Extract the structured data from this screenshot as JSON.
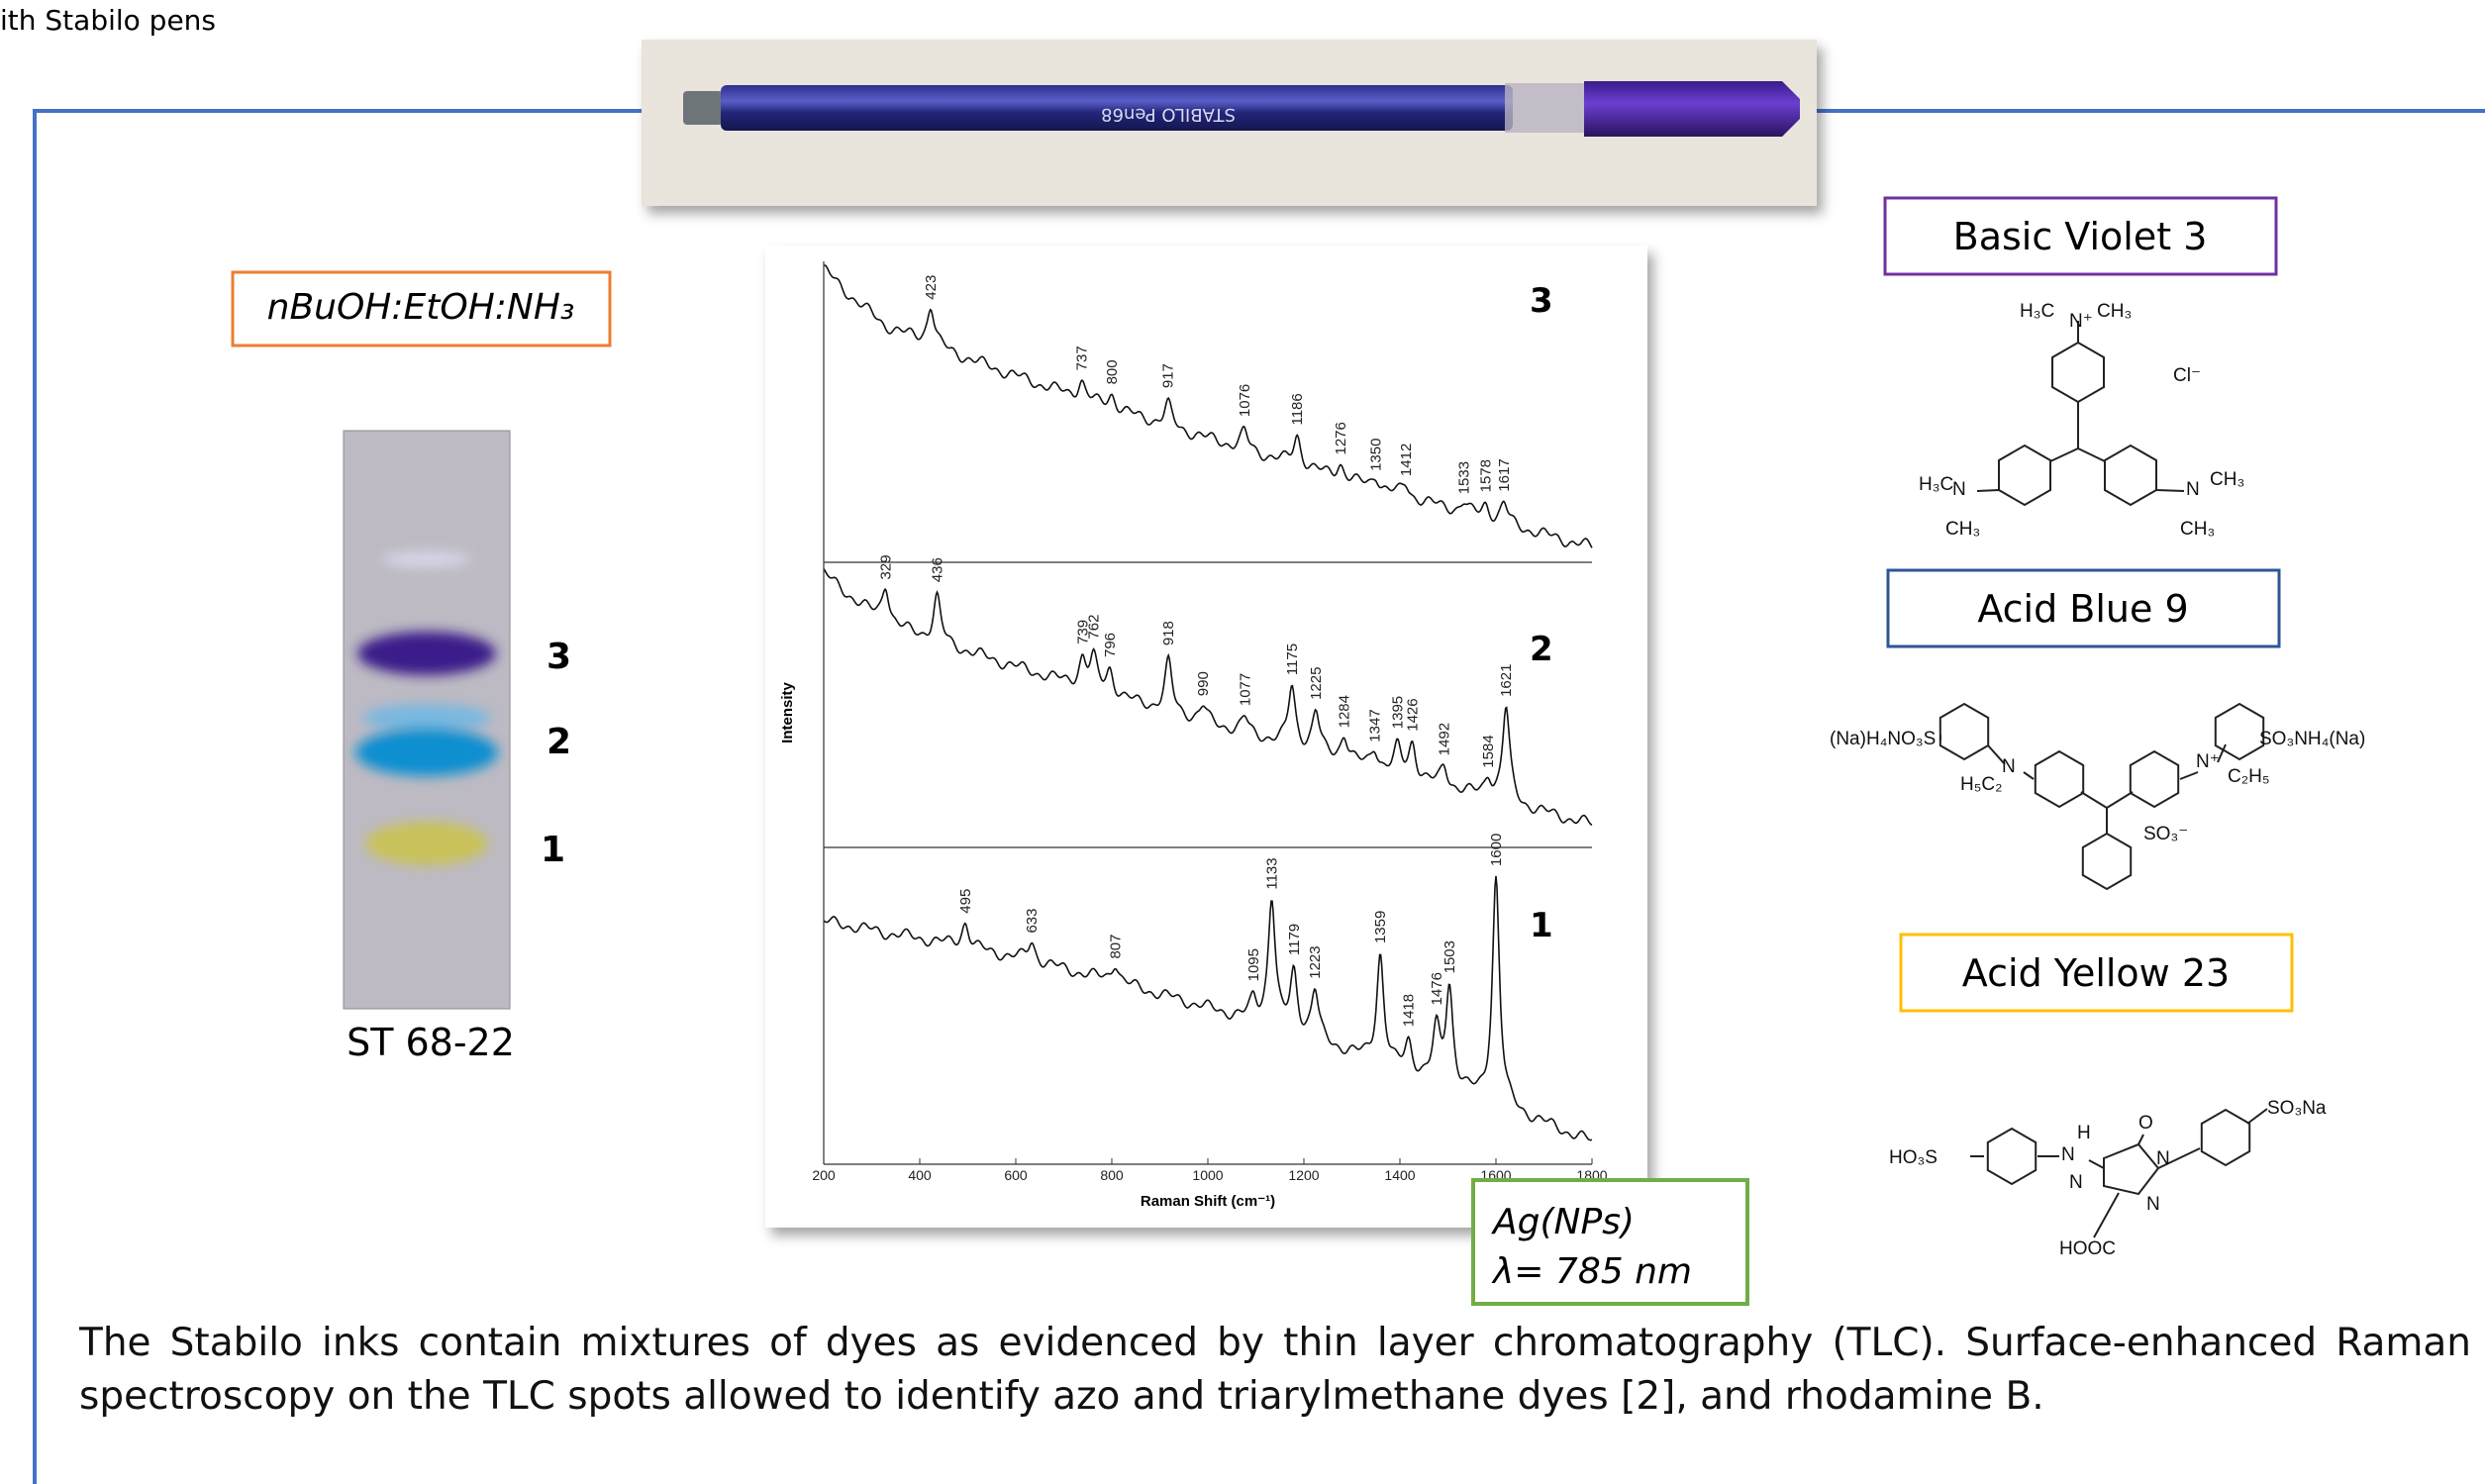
{
  "header": {
    "fragment": "ith Stabilo pens"
  },
  "pen": {
    "brand": "STABILO Pen68"
  },
  "tlc": {
    "solvent": "nBuOH:EtOH:NH₃",
    "spots": [
      "3",
      "2",
      "1"
    ],
    "sample": "ST 68-22"
  },
  "spectra": {
    "y_label": "Intensity",
    "x_label": "Raman Shift (cm⁻¹)",
    "xlim": [
      200,
      1800
    ],
    "x_ticks": [
      200,
      400,
      600,
      800,
      1000,
      1200,
      1400,
      1600,
      1800
    ],
    "panels": [
      {
        "label": "3",
        "peaks": [
          423,
          737,
          800,
          917,
          1076,
          1186,
          1276,
          1350,
          1412,
          1533,
          1578,
          1617
        ]
      },
      {
        "label": "2",
        "peaks": [
          329,
          436,
          739,
          762,
          796,
          918,
          990,
          1077,
          1175,
          1225,
          1284,
          1347,
          1395,
          1426,
          1492,
          1584,
          1621
        ]
      },
      {
        "label": "1",
        "peaks": [
          495,
          633,
          807,
          1095,
          1133,
          1179,
          1223,
          1359,
          1418,
          1476,
          1503,
          1600
        ]
      }
    ]
  },
  "conditions": [
    "Ag(NPs)",
    "λ= 785 nm"
  ],
  "dyes": [
    {
      "name": "Basic Violet 3",
      "atoms": [
        "H₃C",
        "N⁺",
        "CH₃",
        "Cl⁻",
        "H₃C",
        "N",
        "CH₃",
        "N",
        "CH₃",
        "CH₃"
      ]
    },
    {
      "name": "Acid Blue 9",
      "atoms": [
        "(Na)H₄NO₃S",
        "N",
        "H₅C₂",
        "N⁺",
        "C₂H₅",
        "SO₃NH₄(Na)",
        "SO₃⁻"
      ]
    },
    {
      "name": "Acid Yellow 23",
      "atoms": [
        "HO₃S",
        "H",
        "N",
        "N",
        "O",
        "N",
        "N",
        "SO₃Na",
        "HOOC"
      ]
    }
  ],
  "caption": "The Stabilo inks contain mixtures of dyes as evidenced by thin layer chromatography (TLC). Surface-enhanced Raman spectroscopy on the TLC spots allowed to identify azo and triarylmethane dyes [2], and rhodamine B."
}
